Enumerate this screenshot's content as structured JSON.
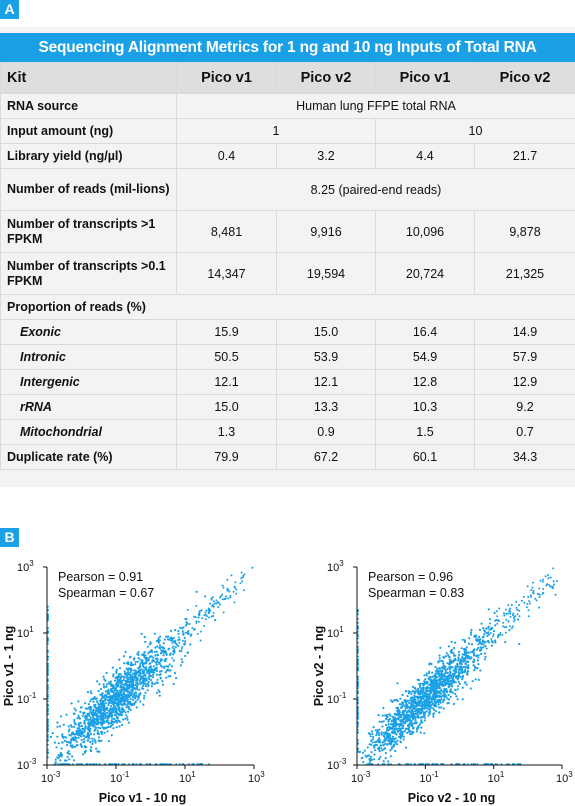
{
  "panel_a": {
    "badge": "A",
    "title": "Sequencing Alignment Metrics for 1 ng and 10 ng Inputs of Total RNA",
    "headers": [
      "Kit",
      "Pico v1",
      "Pico v2",
      "Pico v1",
      "Pico v2"
    ],
    "rna_source": {
      "label": "RNA source",
      "value": "Human lung FFPE total RNA"
    },
    "input_amount": {
      "label": "Input amount (ng)",
      "values": [
        "1",
        "10"
      ]
    },
    "library_yield": {
      "label": "Library yield (ng/µl)",
      "values": [
        "0.4",
        "3.2",
        "4.4",
        "21.7"
      ]
    },
    "num_reads": {
      "label": "Number of reads (mil-lions)",
      "value": "8.25 (paired-end reads)"
    },
    "transcripts_1": {
      "label": "Number of transcripts >1 FPKM",
      "values": [
        "8,481",
        "9,916",
        "10,096",
        "9,878"
      ]
    },
    "transcripts_01": {
      "label": "Number of transcripts >0.1 FPKM",
      "values": [
        "14,347",
        "19,594",
        "20,724",
        "21,325"
      ]
    },
    "proportion": {
      "label": "Proportion of reads (%)"
    },
    "subrows": [
      {
        "label": "Exonic",
        "values": [
          "15.9",
          "15.0",
          "16.4",
          "14.9"
        ]
      },
      {
        "label": "Intronic",
        "values": [
          "50.5",
          "53.9",
          "54.9",
          "57.9"
        ]
      },
      {
        "label": "Intergenic",
        "values": [
          "12.1",
          "12.1",
          "12.8",
          "12.9"
        ]
      },
      {
        "label": "rRNA",
        "values": [
          "15.0",
          "13.3",
          "10.3",
          "9.2"
        ]
      },
      {
        "label": "Mitochondrial",
        "values": [
          "1.3",
          "0.9",
          "1.5",
          "0.7"
        ]
      }
    ],
    "duplicate_rate": {
      "label": "Duplicate rate (%)",
      "values": [
        "79.9",
        "67.2",
        "60.1",
        "34.3"
      ]
    }
  },
  "panel_b": {
    "badge": "B",
    "tick_labels": {
      "major": "10",
      "exponents": [
        "-3",
        "-1",
        "1",
        "3"
      ]
    },
    "colors": {
      "points": "#1aa0e6",
      "badge": "#1aa0e6"
    }
  },
  "chart_data": [
    {
      "type": "scatter",
      "title": "",
      "xlabel": "Pico v1 - 10 ng",
      "ylabel": "Pico v1 - 1 ng",
      "xscale": "log",
      "yscale": "log",
      "xlim": [
        0.001,
        1000
      ],
      "ylim": [
        0.001,
        1000
      ],
      "annotations": [
        "Pearson = 0.91",
        "Spearman = 0.67"
      ],
      "pearson": 0.91,
      "spearman": 0.67,
      "grid": false,
      "legend": "none"
    },
    {
      "type": "scatter",
      "title": "",
      "xlabel": "Pico v2 - 10 ng",
      "ylabel": "Pico v2 - 1 ng",
      "xscale": "log",
      "yscale": "log",
      "xlim": [
        0.001,
        1000
      ],
      "ylim": [
        0.001,
        1000
      ],
      "annotations": [
        "Pearson = 0.96",
        "Spearman = 0.83"
      ],
      "pearson": 0.96,
      "spearman": 0.83,
      "grid": false,
      "legend": "none"
    }
  ]
}
